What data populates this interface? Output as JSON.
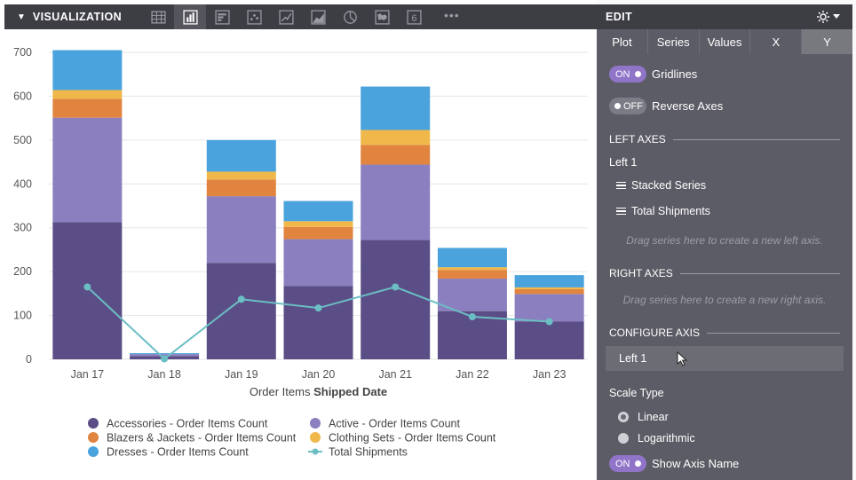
{
  "viz_header": {
    "title": "VISUALIZATION",
    "more_label": "•••",
    "caret": "▼"
  },
  "viz_icons": [
    "table-icon",
    "column-chart-icon",
    "bar-chart-icon",
    "scatter-icon",
    "line-chart-icon",
    "area-chart-icon",
    "pie-chart-icon",
    "map-icon",
    "single-value-icon"
  ],
  "single_value_glyph": "6",
  "legend": [
    {
      "label": "Accessories - Order Items Count",
      "color": "#5b4e86",
      "kind": "dot"
    },
    {
      "label": "Active - Order Items Count",
      "color": "#8c7fbf",
      "kind": "dot"
    },
    {
      "label": "Blazers & Jackets - Order Items Count",
      "color": "#e0843f",
      "kind": "dot"
    },
    {
      "label": "Clothing Sets - Order Items Count",
      "color": "#f0b84a",
      "kind": "dot"
    },
    {
      "label": "Dresses - Order Items Count",
      "color": "#4aa3dc",
      "kind": "dot"
    },
    {
      "label": "Total Shipments",
      "color": "#6bbec4",
      "kind": "line"
    }
  ],
  "chart_data": {
    "type": "bar",
    "stacked": true,
    "categories": [
      "Jan 17",
      "Jan 18",
      "Jan 19",
      "Jan 20",
      "Jan 21",
      "Jan 22",
      "Jan 23"
    ],
    "series": [
      {
        "name": "Accessories - Order Items Count",
        "color": "#5b4e86",
        "values": [
          313,
          7,
          220,
          167,
          272,
          110,
          86
        ]
      },
      {
        "name": "Active - Order Items Count",
        "color": "#8c7fbf",
        "values": [
          238,
          5,
          152,
          107,
          172,
          74,
          63
        ]
      },
      {
        "name": "Blazers & Jackets - Order Items Count",
        "color": "#e0843f",
        "values": [
          43,
          0,
          38,
          28,
          45,
          20,
          11
        ]
      },
      {
        "name": "Clothing Sets - Order Items Count",
        "color": "#f0b84a",
        "values": [
          20,
          0,
          18,
          13,
          34,
          6,
          4
        ]
      },
      {
        "name": "Dresses - Order Items Count",
        "color": "#4aa3dc",
        "values": [
          91,
          2,
          72,
          46,
          99,
          44,
          28
        ]
      }
    ],
    "line_series": {
      "name": "Total Shipments",
      "color": "#6bbec4",
      "values": [
        165,
        1,
        137,
        117,
        165,
        97,
        86
      ]
    },
    "xlabel_prefix": "Order Items ",
    "xlabel_bold": "Shipped Date",
    "ylim": [
      0,
      700
    ],
    "yticks": [
      0,
      100,
      200,
      300,
      400,
      500,
      600,
      700
    ],
    "grid": true,
    "legend_position": "bottom"
  },
  "edit": {
    "title": "EDIT",
    "tabs": [
      "Plot",
      "Series",
      "Values",
      "X",
      "Y"
    ],
    "active_tab": "Y",
    "gridlines": {
      "state": "ON",
      "label": "Gridlines"
    },
    "reverse_axes": {
      "state": "OFF",
      "label": "Reverse Axes"
    },
    "left_axes_title": "LEFT AXES",
    "left_axis_name": "Left 1",
    "left_series": [
      "Stacked Series",
      "Total Shipments"
    ],
    "left_hint": "Drag series here to create a new left axis.",
    "right_axes_title": "RIGHT AXES",
    "right_hint": "Drag series here to create a new right axis.",
    "configure_title": "CONFIGURE AXIS",
    "configure_selected": "Left 1",
    "scale_type_label": "Scale Type",
    "scale_options": [
      "Linear",
      "Logarithmic"
    ],
    "scale_selected": "Linear",
    "show_axis_name": {
      "state": "ON",
      "label": "Show Axis Name"
    }
  }
}
